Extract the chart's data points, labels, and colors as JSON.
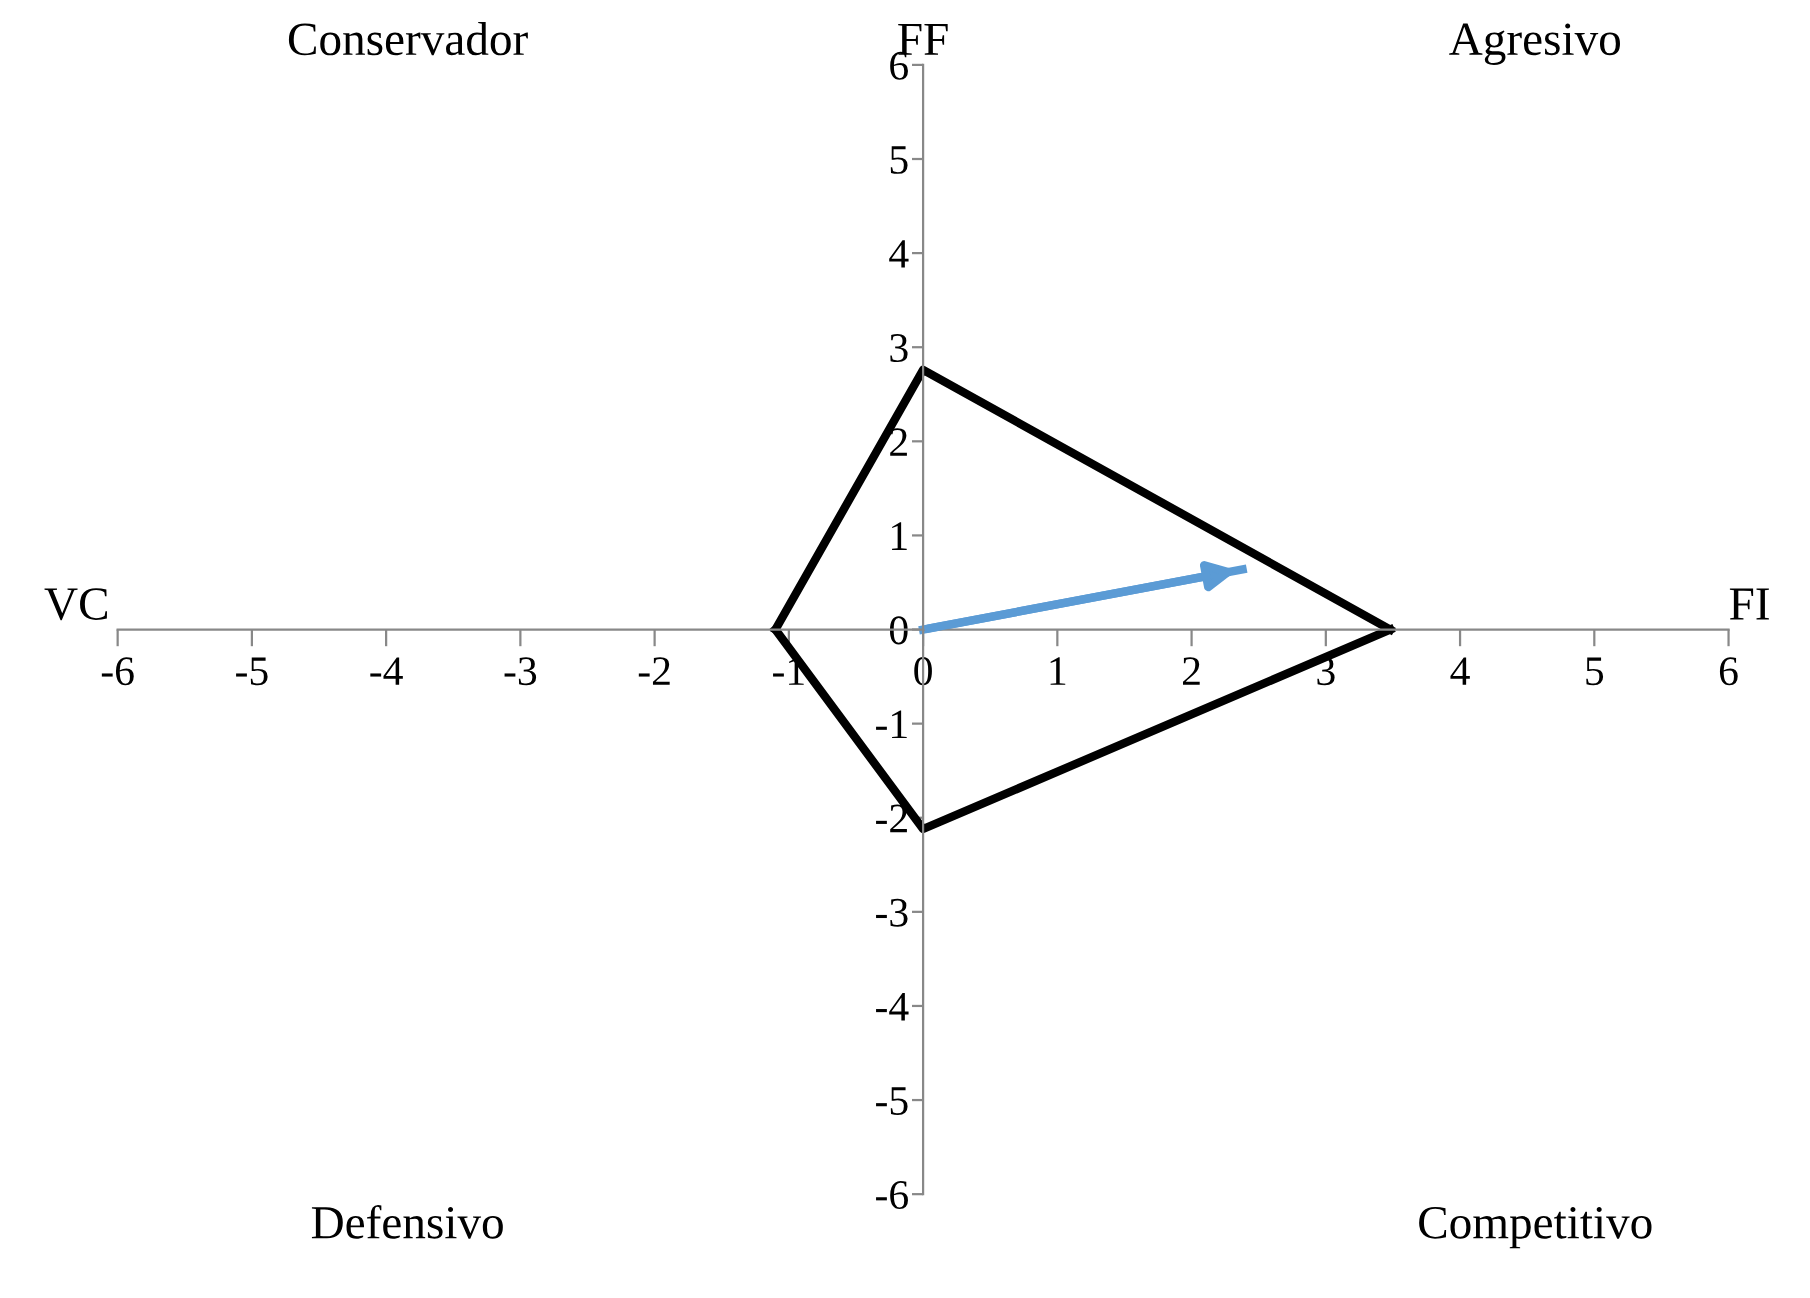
{
  "chart_data": {
    "type": "line",
    "xlabel": "FI",
    "ylabel": "FF",
    "annotations": [
      "Conservador",
      "Agresivo",
      "Defensivo",
      "Competitivo",
      "VC"
    ],
    "series": [
      {
        "type": "line",
        "color": "#000000",
        "x": [
          -1.1,
          0,
          3.48
        ],
        "values": [
          0,
          2.76,
          0
        ]
      },
      {
        "type": "line",
        "color": "#000000",
        "x": [
          -1.1,
          0,
          3.48
        ],
        "values": [
          0,
          -2.12,
          0
        ]
      },
      {
        "type": "line",
        "color": "#5b9bd5",
        "x": [
          0,
          2.38
        ],
        "values": [
          0,
          0.64
        ]
      }
    ],
    "xlim": [
      -6,
      6
    ],
    "ylim": [
      -6,
      6
    ],
    "xticks": [
      -6,
      -5,
      -4,
      -3,
      -2,
      -1,
      0,
      1,
      2,
      3,
      4,
      5,
      6
    ],
    "yticks": [
      -6,
      -5,
      -4,
      -3,
      -2,
      -1,
      0,
      1,
      2,
      3,
      4,
      5,
      6
    ],
    "grid": false,
    "legend": false
  }
}
